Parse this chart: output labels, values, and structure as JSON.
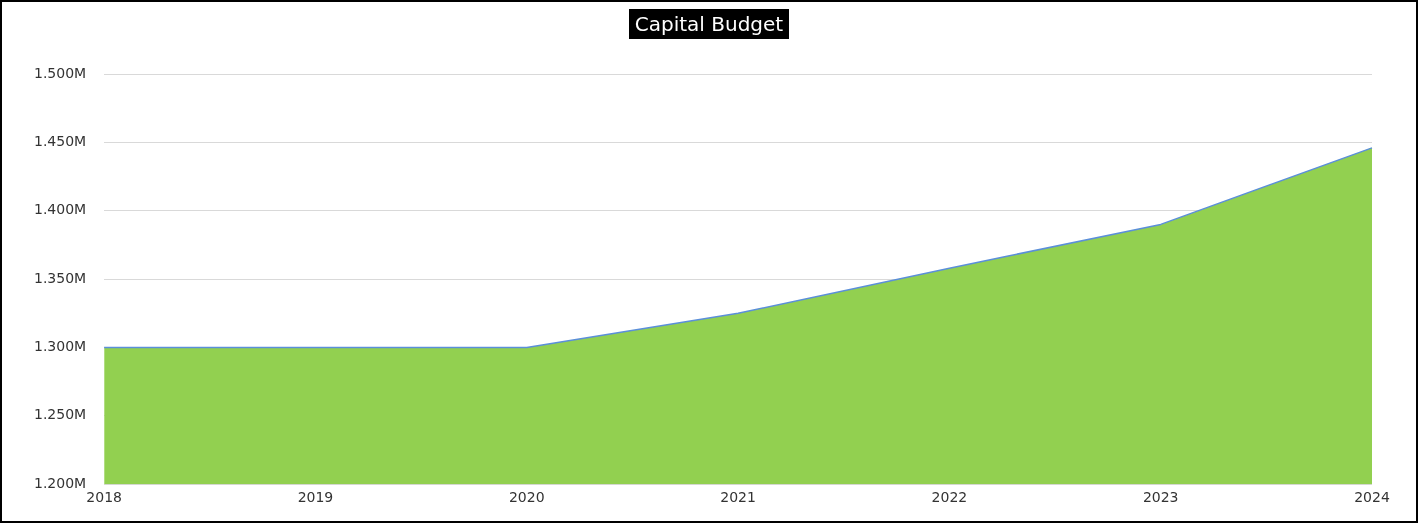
{
  "chart_data": {
    "type": "area",
    "title": "Capital Budget",
    "categories": [
      "2018",
      "2019",
      "2020",
      "2021",
      "2022",
      "2023",
      "2024"
    ],
    "series": [
      {
        "color": "#92d050",
        "values": [
          1300000,
          1300000,
          1300000,
          1325000,
          1358000,
          1390000,
          1446000
        ]
      },
      {
        "type": "line",
        "color": "#5b8fd9",
        "values": [
          1300000,
          1300000,
          1300000,
          1325000,
          1358000,
          1390000,
          1446000
        ]
      }
    ],
    "ylim": [
      1200000,
      1500000
    ],
    "yticks": [
      {
        "value": 1200000,
        "label": "1.200M"
      },
      {
        "value": 1250000,
        "label": "1.250M"
      },
      {
        "value": 1300000,
        "label": "1.300M"
      },
      {
        "value": 1350000,
        "label": "1.350M"
      },
      {
        "value": 1400000,
        "label": "1.400M"
      },
      {
        "value": 1450000,
        "label": "1.450M"
      },
      {
        "value": 1500000,
        "label": "1.500M"
      }
    ],
    "grid": "y",
    "legend": false
  }
}
